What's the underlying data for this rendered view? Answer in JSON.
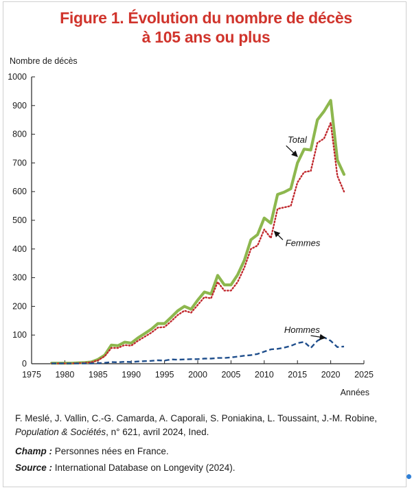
{
  "figure": {
    "title_line1": "Figure 1. Évolution du nombre de décès",
    "title_line2": "à 105 ans ou plus"
  },
  "colors": {
    "title": "#d0342c",
    "total": "#8db74e",
    "femmes": "#c0282d",
    "hommes": "#1f4e8c",
    "axis": "#222222"
  },
  "chart_data": {
    "type": "line",
    "title": "Figure 1. Évolution du nombre de décès à 105 ans ou plus",
    "xlabel": "Années",
    "ylabel": "Nombre de décès",
    "xlim": [
      1975,
      2025
    ],
    "ylim": [
      0,
      1000
    ],
    "xticks": [
      1975,
      1980,
      1985,
      1990,
      1995,
      2000,
      2005,
      2010,
      2015,
      2020,
      2025
    ],
    "yticks": [
      0,
      100,
      200,
      300,
      400,
      500,
      600,
      700,
      800,
      900,
      1000
    ],
    "x": [
      1978,
      1979,
      1980,
      1981,
      1982,
      1983,
      1984,
      1985,
      1986,
      1987,
      1988,
      1989,
      1990,
      1991,
      1992,
      1993,
      1994,
      1995,
      1996,
      1997,
      1998,
      1999,
      2000,
      2001,
      2002,
      2003,
      2004,
      2005,
      2006,
      2007,
      2008,
      2009,
      2010,
      2011,
      2012,
      2013,
      2014,
      2015,
      2016,
      2017,
      2018,
      2019,
      2020,
      2021,
      2022
    ],
    "series": [
      {
        "name": "Total",
        "style": "solid",
        "values": [
          2,
          2,
          2,
          2,
          3,
          4,
          6,
          15,
          30,
          65,
          63,
          75,
          72,
          90,
          105,
          120,
          140,
          140,
          162,
          185,
          200,
          190,
          222,
          250,
          243,
          308,
          275,
          275,
          310,
          360,
          432,
          450,
          508,
          490,
          590,
          598,
          610,
          700,
          748,
          745,
          850,
          880,
          918,
          710,
          660
        ]
      },
      {
        "name": "Femmes",
        "style": "dotted",
        "values": [
          1,
          1,
          1,
          1,
          2,
          3,
          5,
          12,
          26,
          55,
          55,
          65,
          63,
          80,
          94,
          108,
          126,
          128,
          148,
          170,
          185,
          178,
          205,
          232,
          228,
          285,
          255,
          255,
          285,
          335,
          400,
          412,
          468,
          438,
          540,
          545,
          550,
          632,
          668,
          672,
          770,
          785,
          840,
          655,
          600
        ]
      },
      {
        "name": "Hommes",
        "style": "dashed",
        "values": [
          1,
          1,
          1,
          1,
          1,
          1,
          1,
          2,
          3,
          6,
          5,
          7,
          6,
          8,
          9,
          10,
          12,
          11,
          15,
          14,
          15,
          16,
          16,
          18,
          18,
          20,
          20,
          22,
          25,
          28,
          30,
          34,
          42,
          50,
          52,
          56,
          62,
          72,
          76,
          55,
          80,
          92,
          80,
          58,
          60
        ]
      }
    ],
    "annotations": [
      "Total",
      "Femmes",
      "Hommes"
    ]
  },
  "source": {
    "authors": "F. Meslé, J. Vallin, C.-G. Camarda, A. Caporali, S. Poniakina, L. Toussaint, J.-M. Robine,",
    "publication": "Population & Sociétés",
    "publication_rest": ", n° 621, avril 2024, Ined.",
    "champ_label": "Champ :",
    "champ_text": " Personnes nées en France.",
    "source_label": "Source :",
    "source_text": " International Database on Longevity (2024)."
  }
}
